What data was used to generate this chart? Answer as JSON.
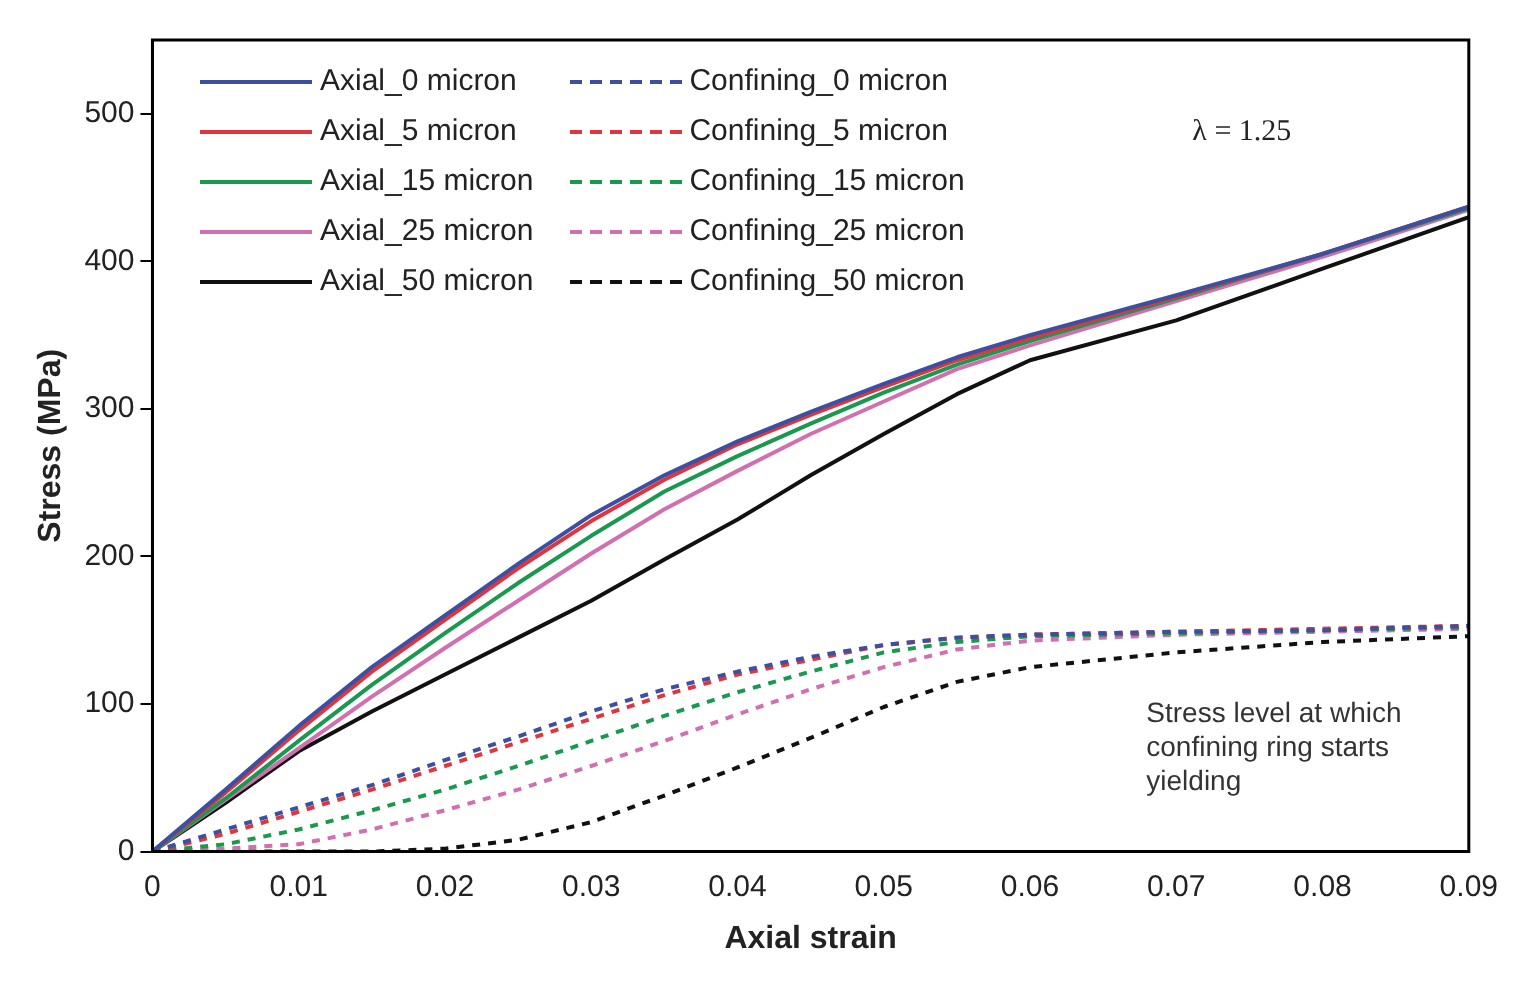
{
  "chart_data": {
    "type": "line",
    "xlabel": "Axial strain",
    "ylabel": "Stress (MPa)",
    "x": [
      0,
      0.005,
      0.01,
      0.015,
      0.02,
      0.025,
      0.03,
      0.035,
      0.04,
      0.045,
      0.05,
      0.055,
      0.06,
      0.07,
      0.08,
      0.09
    ],
    "xlim": [
      0,
      0.09
    ],
    "xticks": [
      0,
      0.01,
      0.02,
      0.03,
      0.04,
      0.05,
      0.06,
      0.07,
      0.08,
      0.09
    ],
    "ylim": [
      0,
      550
    ],
    "yticks": [
      0,
      100,
      200,
      300,
      400,
      500
    ],
    "grid": false,
    "legend": "top left",
    "marker": "none",
    "annotations": [
      "λ = 1.25",
      "Stress level at which confining ring starts yielding"
    ],
    "series": [
      {
        "name": "Axial_0 micron",
        "color": "#3d4fa0",
        "line_style": "solid",
        "values": [
          0,
          42,
          85,
          125,
          160,
          195,
          228,
          255,
          278,
          298,
          317,
          335,
          350,
          377,
          405,
          437
        ]
      },
      {
        "name": "Axial_5 micron",
        "color": "#e0353d",
        "line_style": "solid",
        "values": [
          0,
          40,
          82,
          122,
          157,
          192,
          224,
          252,
          276,
          296,
          315,
          333,
          348,
          376,
          405,
          437
        ]
      },
      {
        "name": "Axial_15 micron",
        "color": "#1a9850",
        "line_style": "solid",
        "values": [
          0,
          36,
          75,
          113,
          148,
          182,
          214,
          244,
          268,
          290,
          311,
          330,
          346,
          375,
          405,
          436
        ]
      },
      {
        "name": "Axial_25 micron",
        "color": "#d070b0",
        "line_style": "solid",
        "values": [
          0,
          35,
          70,
          105,
          138,
          170,
          202,
          232,
          258,
          283,
          305,
          327,
          343,
          373,
          403,
          435
        ]
      },
      {
        "name": "Axial_50 micron",
        "color": "#111111",
        "line_style": "solid",
        "values": [
          0,
          33,
          68,
          95,
          120,
          145,
          170,
          198,
          225,
          255,
          283,
          310,
          333,
          360,
          395,
          430
        ]
      },
      {
        "name": "Confining_0 micron",
        "color": "#3d4fa0",
        "line_style": "dashed",
        "values": [
          0,
          15,
          30,
          45,
          62,
          78,
          95,
          110,
          122,
          132,
          140,
          145,
          147,
          149,
          150,
          153
        ]
      },
      {
        "name": "Confining_5 micron",
        "color": "#e0353d",
        "line_style": "dashed",
        "values": [
          0,
          12,
          27,
          42,
          58,
          74,
          90,
          106,
          120,
          130,
          140,
          145,
          147,
          149,
          151,
          153
        ]
      },
      {
        "name": "Confining_15 micron",
        "color": "#1a9850",
        "line_style": "dashed",
        "values": [
          0,
          5,
          15,
          28,
          42,
          58,
          75,
          92,
          108,
          122,
          135,
          142,
          146,
          148,
          150,
          152
        ]
      },
      {
        "name": "Confining_25 micron",
        "color": "#d070b0",
        "line_style": "dashed",
        "values": [
          0,
          2,
          5,
          15,
          28,
          42,
          58,
          75,
          93,
          110,
          125,
          137,
          143,
          147,
          149,
          151
        ]
      },
      {
        "name": "Confining_50 micron",
        "color": "#111111",
        "line_style": "dashed",
        "values": [
          0,
          0,
          0,
          0,
          2,
          8,
          20,
          38,
          57,
          77,
          98,
          115,
          125,
          135,
          142,
          146
        ]
      }
    ]
  }
}
